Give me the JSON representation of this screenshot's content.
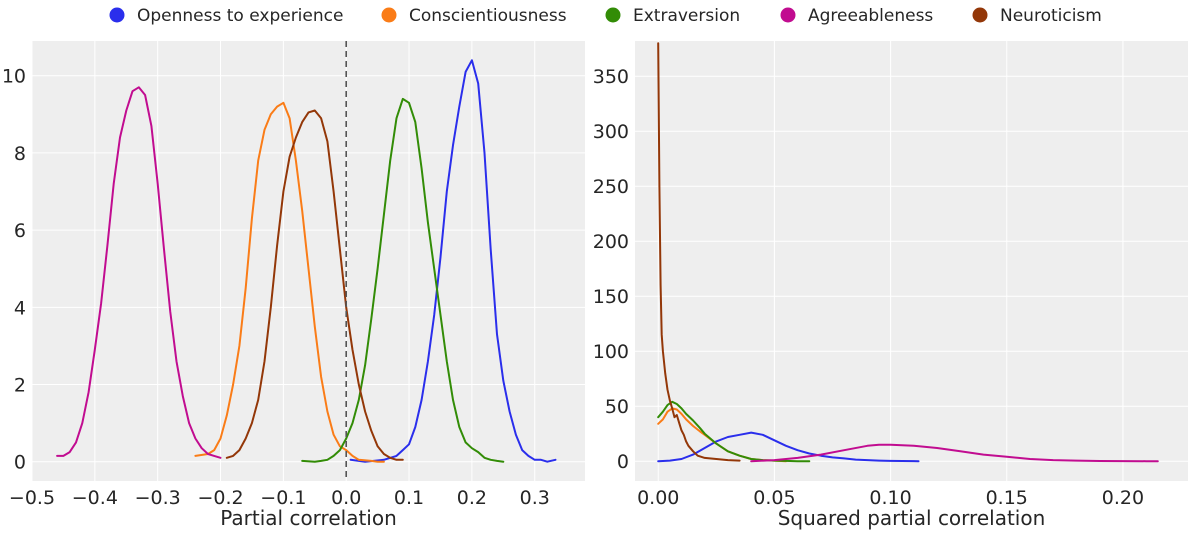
{
  "legend": {
    "placement": "top-center",
    "entries": [
      {
        "label": "Openness to experience",
        "color": "#2a2eec"
      },
      {
        "label": "Conscientiousness",
        "color": "#fa7c17"
      },
      {
        "label": "Extraversion",
        "color": "#328c06"
      },
      {
        "label": "Agreeableness",
        "color": "#c10c90"
      },
      {
        "label": "Neuroticism",
        "color": "#933708"
      }
    ]
  },
  "chart_data": [
    {
      "type": "line",
      "title": "",
      "xlabel": "Partial correlation",
      "ylabel": "",
      "xlim": [
        -0.5,
        0.38
      ],
      "ylim": [
        -0.5,
        10.9
      ],
      "grid": true,
      "background": "#eeeeee",
      "xticks": [
        -0.5,
        -0.4,
        -0.3,
        -0.2,
        -0.1,
        0.0,
        0.1,
        0.2,
        0.3
      ],
      "xtick_labels": [
        "−0.5",
        "−0.4",
        "−0.3",
        "−0.2",
        "−0.1",
        "0.0",
        "0.1",
        "0.2",
        "0.3"
      ],
      "yticks": [
        0,
        2,
        4,
        6,
        8,
        10
      ],
      "ytick_labels": [
        "0",
        "2",
        "4",
        "6",
        "8",
        "10"
      ],
      "reference_line": {
        "x": 0.0,
        "style": "dashed",
        "color": "#555555"
      },
      "series": [
        {
          "name": "Openness to experience",
          "color": "#2a2eec",
          "x": [
            0.007,
            0.03,
            0.06,
            0.08,
            0.09,
            0.1,
            0.11,
            0.12,
            0.13,
            0.14,
            0.15,
            0.16,
            0.17,
            0.18,
            0.19,
            0.2,
            0.21,
            0.22,
            0.23,
            0.24,
            0.25,
            0.26,
            0.27,
            0.28,
            0.29,
            0.3,
            0.31,
            0.32,
            0.333
          ],
          "y": [
            0.05,
            0.0,
            0.05,
            0.15,
            0.3,
            0.45,
            0.9,
            1.6,
            2.6,
            3.8,
            5.3,
            7.0,
            8.2,
            9.2,
            10.1,
            10.4,
            9.8,
            8.0,
            5.5,
            3.3,
            2.1,
            1.3,
            0.7,
            0.3,
            0.15,
            0.05,
            0.05,
            0.0,
            0.05
          ]
        },
        {
          "name": "Conscientiousness",
          "color": "#fa7c17",
          "x": [
            -0.24,
            -0.22,
            -0.21,
            -0.2,
            -0.19,
            -0.18,
            -0.17,
            -0.16,
            -0.15,
            -0.14,
            -0.13,
            -0.12,
            -0.11,
            -0.1,
            -0.09,
            -0.08,
            -0.07,
            -0.06,
            -0.05,
            -0.04,
            -0.03,
            -0.02,
            -0.01,
            0.0,
            0.01,
            0.02,
            0.04,
            0.05,
            0.06
          ],
          "y": [
            0.15,
            0.2,
            0.3,
            0.6,
            1.2,
            2.0,
            3.0,
            4.5,
            6.3,
            7.8,
            8.6,
            9.0,
            9.2,
            9.3,
            8.9,
            7.8,
            6.5,
            5.0,
            3.5,
            2.2,
            1.3,
            0.7,
            0.4,
            0.3,
            0.15,
            0.05,
            0.02,
            0.0,
            0.0
          ]
        },
        {
          "name": "Extraversion",
          "color": "#328c06",
          "x": [
            -0.07,
            -0.05,
            -0.04,
            -0.03,
            -0.02,
            -0.01,
            0.0,
            0.01,
            0.02,
            0.03,
            0.04,
            0.05,
            0.06,
            0.07,
            0.08,
            0.09,
            0.1,
            0.11,
            0.12,
            0.13,
            0.14,
            0.15,
            0.16,
            0.17,
            0.18,
            0.19,
            0.2,
            0.21,
            0.22,
            0.23,
            0.24,
            0.25
          ],
          "y": [
            0.02,
            0.0,
            0.02,
            0.05,
            0.15,
            0.3,
            0.6,
            1.0,
            1.6,
            2.5,
            3.7,
            5.0,
            6.4,
            7.8,
            8.9,
            9.4,
            9.3,
            8.8,
            7.6,
            6.2,
            5.0,
            3.8,
            2.6,
            1.6,
            0.9,
            0.5,
            0.35,
            0.25,
            0.1,
            0.05,
            0.02,
            0.0
          ]
        },
        {
          "name": "Agreeableness",
          "color": "#c10c90",
          "x": [
            -0.46,
            -0.45,
            -0.44,
            -0.43,
            -0.42,
            -0.41,
            -0.4,
            -0.39,
            -0.38,
            -0.37,
            -0.36,
            -0.35,
            -0.34,
            -0.33,
            -0.32,
            -0.31,
            -0.3,
            -0.29,
            -0.28,
            -0.27,
            -0.26,
            -0.25,
            -0.24,
            -0.23,
            -0.22,
            -0.21,
            -0.2
          ],
          "y": [
            0.15,
            0.15,
            0.25,
            0.5,
            1.0,
            1.8,
            2.9,
            4.1,
            5.6,
            7.2,
            8.4,
            9.1,
            9.6,
            9.7,
            9.5,
            8.7,
            7.2,
            5.5,
            3.9,
            2.6,
            1.7,
            1.0,
            0.6,
            0.35,
            0.2,
            0.15,
            0.1
          ]
        },
        {
          "name": "Neuroticism",
          "color": "#933708",
          "x": [
            -0.19,
            -0.18,
            -0.17,
            -0.16,
            -0.15,
            -0.14,
            -0.13,
            -0.12,
            -0.11,
            -0.1,
            -0.09,
            -0.08,
            -0.07,
            -0.06,
            -0.05,
            -0.04,
            -0.03,
            -0.02,
            -0.01,
            0.0,
            0.01,
            0.02,
            0.03,
            0.04,
            0.05,
            0.06,
            0.07,
            0.08,
            0.09
          ],
          "y": [
            0.1,
            0.15,
            0.3,
            0.6,
            1.0,
            1.6,
            2.6,
            4.0,
            5.6,
            7.0,
            7.9,
            8.4,
            8.8,
            9.05,
            9.1,
            8.9,
            8.3,
            7.0,
            5.5,
            4.0,
            2.9,
            2.0,
            1.3,
            0.8,
            0.4,
            0.2,
            0.1,
            0.05,
            0.05
          ]
        }
      ]
    },
    {
      "type": "line",
      "title": "",
      "xlabel": "Squared partial correlation",
      "ylabel": "",
      "xlim": [
        -0.01,
        0.228
      ],
      "ylim": [
        -18,
        382
      ],
      "grid": true,
      "background": "#eeeeee",
      "xticks": [
        0.0,
        0.05,
        0.1,
        0.15,
        0.2
      ],
      "xtick_labels": [
        "0.00",
        "0.05",
        "0.10",
        "0.15",
        "0.20"
      ],
      "yticks": [
        0,
        50,
        100,
        150,
        200,
        250,
        300,
        350
      ],
      "ytick_labels": [
        "0",
        "50",
        "100",
        "150",
        "200",
        "250",
        "300",
        "350"
      ],
      "series": [
        {
          "name": "Openness to experience",
          "color": "#2a2eec",
          "x": [
            0.0,
            0.005,
            0.01,
            0.015,
            0.02,
            0.025,
            0.03,
            0.035,
            0.04,
            0.045,
            0.05,
            0.055,
            0.06,
            0.065,
            0.07,
            0.075,
            0.08,
            0.085,
            0.09,
            0.095,
            0.1,
            0.105,
            0.11,
            0.112
          ],
          "y": [
            0.0,
            0.5,
            2.0,
            6.0,
            12.0,
            18.0,
            22.0,
            24.0,
            26.0,
            24.0,
            19.0,
            14.0,
            10.0,
            7.0,
            5.0,
            3.5,
            2.5,
            1.5,
            1.0,
            0.5,
            0.3,
            0.2,
            0.1,
            0.0
          ]
        },
        {
          "name": "Conscientiousness",
          "color": "#fa7c17",
          "x": [
            0.0,
            0.002,
            0.004,
            0.006,
            0.008,
            0.01,
            0.012,
            0.015,
            0.018,
            0.02,
            0.025,
            0.03,
            0.035,
            0.04,
            0.045,
            0.05,
            0.055
          ],
          "y": [
            34.0,
            38.0,
            45.0,
            48.0,
            47.0,
            43.0,
            38.0,
            32.0,
            27.0,
            24.0,
            16.0,
            9.0,
            5.0,
            2.0,
            1.0,
            0.5,
            0.0
          ]
        },
        {
          "name": "Extraversion",
          "color": "#328c06",
          "x": [
            0.0,
            0.002,
            0.004,
            0.006,
            0.008,
            0.01,
            0.012,
            0.015,
            0.018,
            0.02,
            0.025,
            0.03,
            0.035,
            0.04,
            0.045,
            0.05,
            0.055,
            0.06,
            0.065
          ],
          "y": [
            40.0,
            45.0,
            51.0,
            54.0,
            52.0,
            48.0,
            43.0,
            37.0,
            30.0,
            25.0,
            16.0,
            9.0,
            5.0,
            2.0,
            1.0,
            0.5,
            0.3,
            0.0,
            0.0
          ]
        },
        {
          "name": "Agreeableness",
          "color": "#c10c90",
          "x": [
            0.04,
            0.05,
            0.06,
            0.07,
            0.08,
            0.09,
            0.095,
            0.1,
            0.11,
            0.12,
            0.13,
            0.14,
            0.15,
            0.16,
            0.17,
            0.18,
            0.19,
            0.2,
            0.21,
            0.215
          ],
          "y": [
            0.0,
            1.0,
            3.0,
            6.0,
            10.0,
            14.0,
            15.0,
            15.0,
            14.0,
            12.0,
            9.0,
            6.0,
            4.0,
            2.0,
            1.0,
            0.5,
            0.2,
            0.1,
            0.0,
            0.0
          ]
        },
        {
          "name": "Neuroticism",
          "color": "#933708",
          "x": [
            0.0,
            0.0005,
            0.001,
            0.0015,
            0.002,
            0.003,
            0.004,
            0.005,
            0.006,
            0.007,
            0.008,
            0.009,
            0.01,
            0.011,
            0.012,
            0.013,
            0.015,
            0.017,
            0.02,
            0.025,
            0.03,
            0.035
          ],
          "y": [
            380.0,
            250.0,
            160.0,
            115.0,
            100.0,
            80.0,
            65.0,
            55.0,
            48.0,
            40.0,
            42.0,
            35.0,
            28.0,
            24.0,
            18.0,
            14.0,
            9.0,
            5.0,
            3.0,
            2.0,
            1.0,
            0.5
          ]
        }
      ]
    }
  ]
}
